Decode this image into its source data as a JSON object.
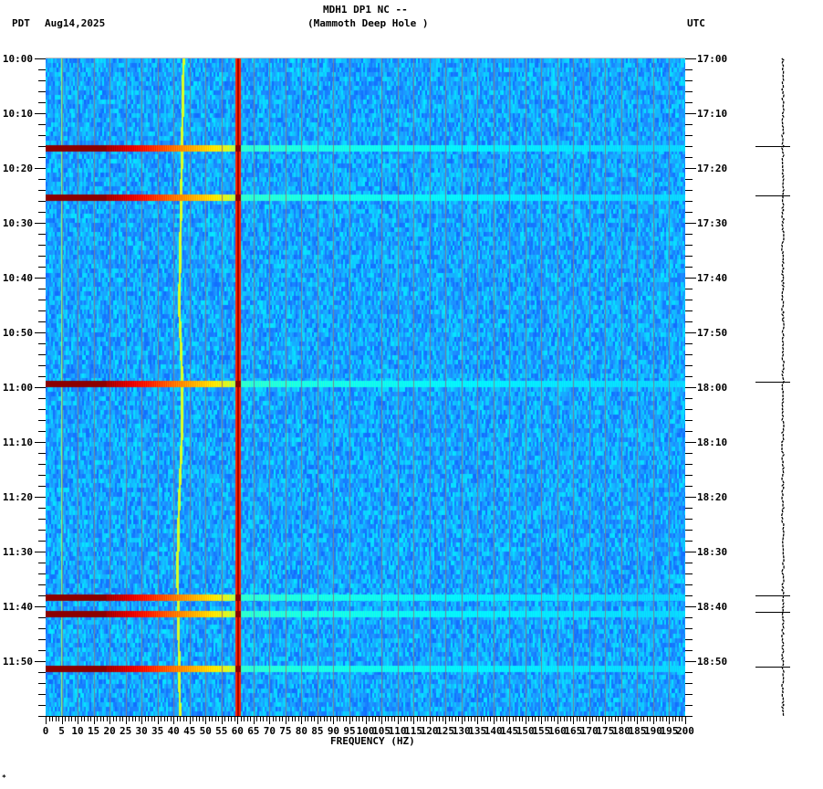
{
  "header": {
    "title_line1": "MDH1 DP1 NC --",
    "title_line2": "(Mammoth Deep Hole )",
    "left_timezone": "PDT",
    "date": "Aug14,2025",
    "right_timezone": "UTC"
  },
  "footer": {
    "corner_mark": "*"
  },
  "chart_data": {
    "type": "heatmap",
    "title": "MDH1 DP1 NC -- (Mammoth Deep Hole )",
    "subtitle": "Aug14,2025",
    "xlabel": "FREQUENCY (HZ)",
    "ylabel_left": "PDT",
    "ylabel_right": "UTC",
    "xlim": [
      0,
      200
    ],
    "x_ticks": [
      0,
      5,
      10,
      15,
      20,
      25,
      30,
      35,
      40,
      45,
      50,
      55,
      60,
      65,
      70,
      75,
      80,
      85,
      90,
      95,
      100,
      105,
      110,
      115,
      120,
      125,
      130,
      135,
      140,
      145,
      150,
      155,
      160,
      165,
      170,
      175,
      180,
      185,
      190,
      195,
      200
    ],
    "y_ticks_left": [
      "10:00",
      "10:10",
      "10:20",
      "10:30",
      "10:40",
      "10:50",
      "11:00",
      "11:10",
      "11:20",
      "11:30",
      "11:40",
      "11:50"
    ],
    "y_ticks_right": [
      "17:00",
      "17:10",
      "17:20",
      "17:30",
      "17:40",
      "17:50",
      "18:00",
      "18:10",
      "18:20",
      "18:30",
      "18:40",
      "18:50"
    ],
    "time_range_minutes": [
      0,
      120
    ],
    "colormap": [
      "#00008b",
      "#0040ff",
      "#1e90ff",
      "#00ffff",
      "#ffff00",
      "#ff8c00",
      "#ff0000",
      "#8b0000"
    ],
    "background_level": "blue (low noise)",
    "persistent_lines_hz": [
      {
        "freq": 5,
        "intensity": "light-cyan/yellow",
        "note": "faint constant line"
      },
      {
        "freq": 42,
        "intensity": "yellow-green",
        "note": "wandering line ~40-43 Hz"
      },
      {
        "freq": 60,
        "intensity": "red/dark-red",
        "note": "power line hum"
      }
    ],
    "event_bands": [
      {
        "minute": 16.3,
        "pdt": "10:16",
        "utc": "17:16"
      },
      {
        "minute": 25.3,
        "pdt": "10:25",
        "utc": "17:25"
      },
      {
        "minute": 59.3,
        "pdt": "10:59",
        "utc": "17:59"
      },
      {
        "minute": 98.3,
        "pdt": "11:38",
        "utc": "18:38"
      },
      {
        "minute": 101.3,
        "pdt": "11:41",
        "utc": "18:41"
      },
      {
        "minute": 111.3,
        "pdt": "11:51",
        "utc": "18:51"
      }
    ],
    "grid": "vertical gray lines every 5 Hz",
    "side_trace": "seismogram trace at right with tick marks at event times"
  }
}
